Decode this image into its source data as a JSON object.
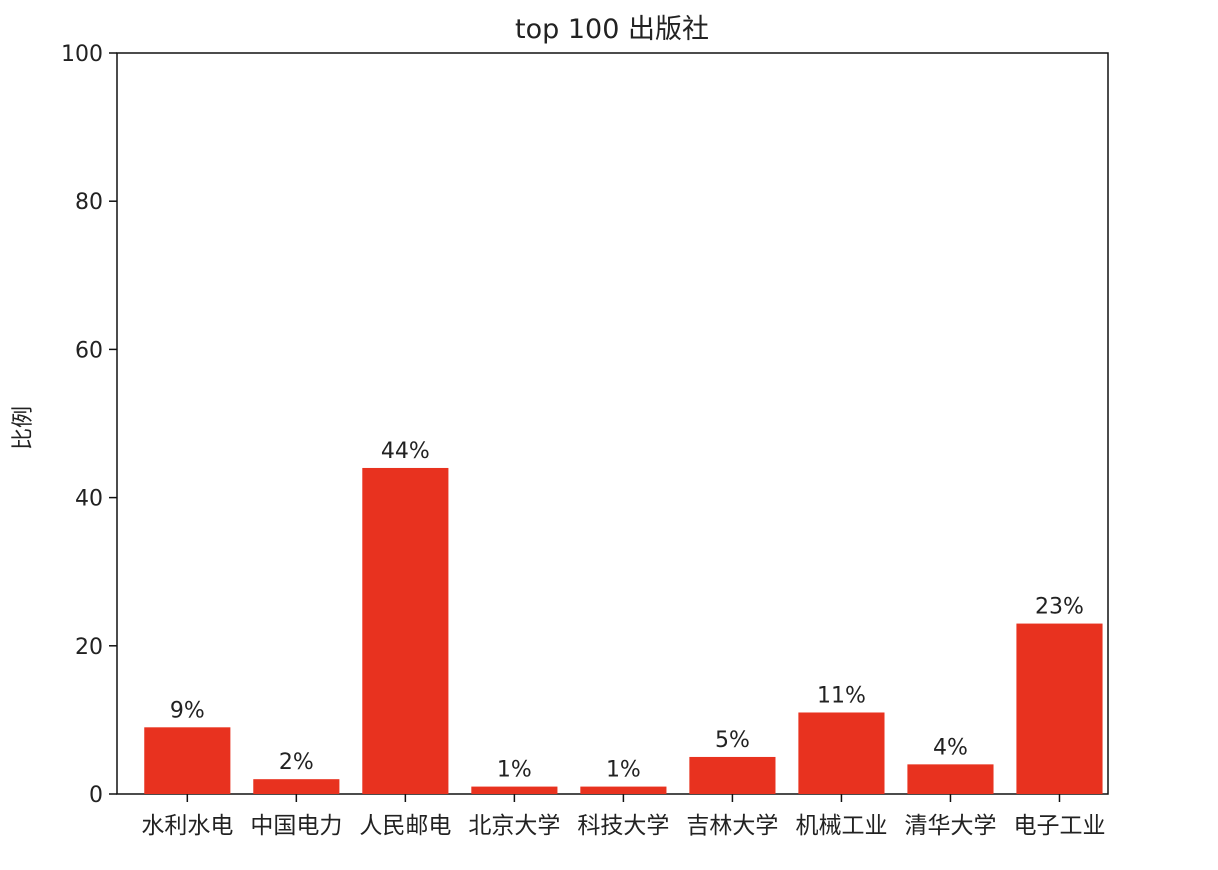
{
  "chart_data": {
    "type": "bar",
    "title": "top 100 出版社",
    "xlabel": "",
    "ylabel": "比例",
    "categories": [
      "水利水电",
      "中国电力",
      "人民邮电",
      "北京大学",
      "科技大学",
      "吉林大学",
      "机械工业",
      "清华大学",
      "电子工业"
    ],
    "values": [
      9,
      2,
      44,
      1,
      1,
      5,
      11,
      4,
      23
    ],
    "data_labels": [
      "9%",
      "2%",
      "44%",
      "1%",
      "1%",
      "5%",
      "11%",
      "4%",
      "23%"
    ],
    "ylim": [
      0,
      100
    ],
    "yticks": [
      0,
      20,
      40,
      60,
      80,
      100
    ],
    "bar_color": "#e8321f",
    "grid": false,
    "legend": "none"
  }
}
